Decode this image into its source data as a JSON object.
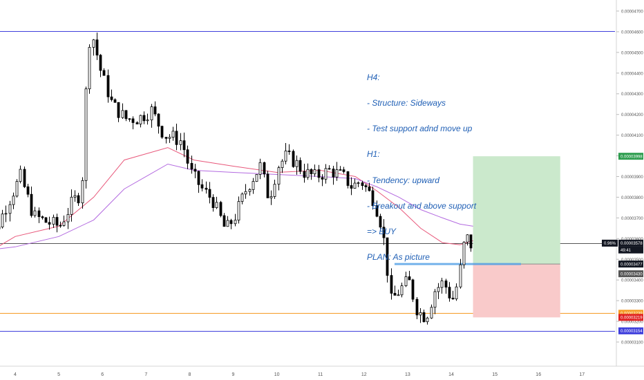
{
  "chart_data": {
    "type": "candlestick",
    "x_ticks": [
      "4",
      "5",
      "6",
      "7",
      "8",
      "9",
      "10",
      "11",
      "12",
      "13",
      "14",
      "15",
      "16",
      "17"
    ],
    "y_ticks": [
      "0.00004700",
      "0.00004600",
      "0.00004500",
      "0.00004400",
      "0.00004300",
      "0.00004200",
      "0.00004100",
      "0.00004000",
      "0.00003900",
      "0.00003800",
      "0.00003700",
      "0.00003600",
      "0.00003500",
      "0.00003400",
      "0.00003300",
      "0.00003200",
      "0.00003100"
    ],
    "ylim": [
      3.06e-05,
      4.73e-05
    ],
    "horizontal_levels": [
      {
        "price": 4.604e-05,
        "label": "0.00004604",
        "color": "#3f3fdc"
      },
      {
        "price": 3.154e-05,
        "label": "0.00003154",
        "color": "#3f3fdc"
      },
      {
        "price": 3.239e-05,
        "label": "0.00003239",
        "color": "#f59a23"
      },
      {
        "price": 3.578e-05,
        "label": "0.00003578",
        "color": "#555555"
      }
    ],
    "price_tags": [
      {
        "price": 3.998e-05,
        "label": "0.00003998",
        "bg": "#2e9d4f"
      },
      {
        "price": 3.578e-05,
        "label": "0.00003578",
        "prefix": "0.96%",
        "bg": "#131722"
      },
      {
        "price": 3.545e-05,
        "label": "49:41",
        "bg": "#131722"
      },
      {
        "price": 3.477e-05,
        "label": "0.00003477",
        "bg": "#131722"
      },
      {
        "price": 3.43e-05,
        "label": "0.00003430",
        "bg": "#555555"
      },
      {
        "price": 3.239e-05,
        "label": "0.00003239",
        "bg": "#f59a23"
      },
      {
        "price": 3.219e-05,
        "label": "0.00003219",
        "bg": "#e02020"
      },
      {
        "price": 3.154e-05,
        "label": "0.00003154",
        "bg": "#3f3fdc"
      }
    ],
    "position": {
      "entry": 3.477e-05,
      "target": 3.998e-05,
      "stop": 3.219e-05,
      "x_start": 14.5,
      "x_end": 16.5
    },
    "entry_zone_line": {
      "price": 3.477e-05,
      "x_start": 12.7,
      "x_end": 15.6
    },
    "price_path": [
      [
        3.2,
        3.5e-05
      ],
      [
        3.5,
        3.58e-05
      ],
      [
        3.9,
        3.77e-05
      ],
      [
        4.2,
        3.9e-05
      ],
      [
        4.5,
        3.71e-05
      ],
      [
        4.8,
        3.68e-05
      ],
      [
        5.1,
        3.66e-05
      ],
      [
        5.4,
        3.78e-05
      ],
      [
        5.6,
        3.82e-05
      ],
      [
        5.75,
        4.55e-05
      ],
      [
        5.85,
        4.58e-05
      ],
      [
        6.05,
        4.4e-05
      ],
      [
        6.3,
        4.25e-05
      ],
      [
        6.6,
        4.18e-05
      ],
      [
        6.9,
        4.18e-05
      ],
      [
        7.2,
        4.22e-05
      ],
      [
        7.5,
        4.1e-05
      ],
      [
        7.7,
        4.09e-05
      ],
      [
        7.9,
        4.07e-05
      ],
      [
        8.1,
        3.92e-05
      ],
      [
        8.4,
        3.83e-05
      ],
      [
        8.6,
        3.79e-05
      ],
      [
        8.9,
        3.64e-05
      ],
      [
        9.1,
        3.7e-05
      ],
      [
        9.4,
        3.85e-05
      ],
      [
        9.7,
        3.95e-05
      ],
      [
        9.9,
        3.79e-05
      ],
      [
        10.1,
        3.95e-05
      ],
      [
        10.3,
        4e-05
      ],
      [
        10.5,
        3.97e-05
      ],
      [
        10.7,
        3.92e-05
      ],
      [
        10.95,
        3.9e-05
      ],
      [
        11.3,
        3.93e-05
      ],
      [
        11.6,
        3.9e-05
      ],
      [
        11.8,
        3.85e-05
      ],
      [
        12.0,
        3.88e-05
      ],
      [
        12.3,
        3.79e-05
      ],
      [
        12.5,
        3.65e-05
      ],
      [
        12.7,
        3.3e-05
      ],
      [
        12.9,
        3.35e-05
      ],
      [
        13.1,
        3.4e-05
      ],
      [
        13.3,
        3.25e-05
      ],
      [
        13.5,
        3.22e-05
      ],
      [
        13.7,
        3.35e-05
      ],
      [
        13.9,
        3.39e-05
      ],
      [
        14.1,
        3.3e-05
      ],
      [
        14.25,
        3.4e-05
      ],
      [
        14.35,
        3.56e-05
      ],
      [
        14.45,
        3.6e-05
      ],
      [
        14.5,
        3.57e-05
      ]
    ],
    "ma_lines": [
      {
        "color": "#e8577a",
        "points": [
          [
            3.2,
            3.51e-05
          ],
          [
            4,
            3.61e-05
          ],
          [
            5,
            3.66e-05
          ],
          [
            5.8,
            3.8e-05
          ],
          [
            6.5,
            3.98e-05
          ],
          [
            7.5,
            4.04e-05
          ],
          [
            8.1,
            3.98e-05
          ],
          [
            9,
            3.95e-05
          ],
          [
            10,
            3.92e-05
          ],
          [
            11,
            3.93e-05
          ],
          [
            11.8,
            3.9e-05
          ],
          [
            12.3,
            3.83e-05
          ],
          [
            12.8,
            3.75e-05
          ],
          [
            13.3,
            3.65e-05
          ],
          [
            13.8,
            3.58e-05
          ],
          [
            14.2,
            3.57e-05
          ],
          [
            14.5,
            3.59e-05
          ]
        ]
      },
      {
        "color": "#b36ae0",
        "points": [
          [
            3.2,
            3.54e-05
          ],
          [
            4,
            3.56e-05
          ],
          [
            5,
            3.61e-05
          ],
          [
            5.8,
            3.69e-05
          ],
          [
            6.5,
            3.84e-05
          ],
          [
            7.5,
            3.96e-05
          ],
          [
            8.1,
            3.93e-05
          ],
          [
            9,
            3.92e-05
          ],
          [
            10,
            3.91e-05
          ],
          [
            11,
            3.9e-05
          ],
          [
            11.8,
            3.89e-05
          ],
          [
            12.3,
            3.85e-05
          ],
          [
            12.8,
            3.8e-05
          ],
          [
            13.3,
            3.74e-05
          ],
          [
            13.8,
            3.7e-05
          ],
          [
            14.2,
            3.67e-05
          ],
          [
            14.5,
            3.66e-05
          ]
        ]
      }
    ]
  },
  "annotation": {
    "lines": [
      "H4:",
      "- Structure: Sideways",
      "- Test support adnd move up",
      "H1:",
      "- Tendency: upward",
      "- Breakout and above support",
      "=> BUY",
      "PLAN: As picture"
    ]
  },
  "colors": {
    "bull": "#ffffff",
    "bear": "#000000",
    "target_zone": "#cbe9cc",
    "stop_zone": "#f9caca",
    "entry_line": "#5aa5e6"
  }
}
